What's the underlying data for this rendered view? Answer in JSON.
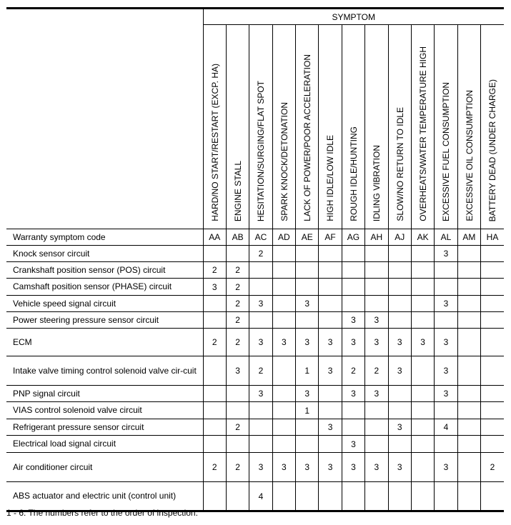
{
  "header": {
    "group_label": "SYMPTOM",
    "symptoms": [
      "HARD/NO START/RESTART (EXCP. HA)",
      "ENGINE STALL",
      "HESITATION/SURGING/FLAT SPOT",
      "SPARK KNOCK/DETONATION",
      "LACK OF POWER/POOR ACCELERATION",
      "HIGH IDLE/LOW IDLE",
      "ROUGH IDLE/HUNTING",
      "IDLING VIBRATION",
      "SLOW/NO RETURN TO IDLE",
      "OVERHEATS/WATER TEMPERATURE HIGH",
      "EXCESSIVE FUEL CONSUMPTION",
      "EXCESSIVE OIL CONSUMPTION",
      "BATTERY DEAD (UNDER CHARGE)"
    ]
  },
  "rows": [
    {
      "name": "Warranty symptom code",
      "values": [
        "AA",
        "AB",
        "AC",
        "AD",
        "AE",
        "AF",
        "AG",
        "AH",
        "AJ",
        "AK",
        "AL",
        "AM",
        "HA"
      ]
    },
    {
      "name": "Knock sensor circuit",
      "values": [
        "",
        "",
        "2",
        "",
        "",
        "",
        "",
        "",
        "",
        "",
        "3",
        "",
        ""
      ]
    },
    {
      "name": "Crankshaft position sensor (POS) circuit",
      "values": [
        "2",
        "2",
        "",
        "",
        "",
        "",
        "",
        "",
        "",
        "",
        "",
        "",
        ""
      ]
    },
    {
      "name": "Camshaft position sensor (PHASE) circuit",
      "values": [
        "3",
        "2",
        "",
        "",
        "",
        "",
        "",
        "",
        "",
        "",
        "",
        "",
        ""
      ]
    },
    {
      "name": "Vehicle speed signal circuit",
      "values": [
        "",
        "2",
        "3",
        "",
        "3",
        "",
        "",
        "",
        "",
        "",
        "3",
        "",
        ""
      ]
    },
    {
      "name": "Power steering pressure sensor circuit",
      "values": [
        "",
        "2",
        "",
        "",
        "",
        "",
        "3",
        "3",
        "",
        "",
        "",
        "",
        ""
      ]
    },
    {
      "name": "ECM",
      "values": [
        "2",
        "2",
        "3",
        "3",
        "3",
        "3",
        "3",
        "3",
        "3",
        "3",
        "3",
        "",
        ""
      ]
    },
    {
      "name": "Intake valve timing control solenoid valve cir-cuit",
      "values": [
        "",
        "3",
        "2",
        "",
        "1",
        "3",
        "2",
        "2",
        "3",
        "",
        "3",
        "",
        ""
      ]
    },
    {
      "name": "PNP signal circuit",
      "values": [
        "",
        "",
        "3",
        "",
        "3",
        "",
        "3",
        "3",
        "",
        "",
        "3",
        "",
        ""
      ]
    },
    {
      "name": "VIAS control solenoid valve circuit",
      "values": [
        "",
        "",
        "",
        "",
        "1",
        "",
        "",
        "",
        "",
        "",
        "",
        "",
        ""
      ]
    },
    {
      "name": "Refrigerant pressure sensor circuit",
      "values": [
        "",
        "2",
        "",
        "",
        "",
        "3",
        "",
        "",
        "3",
        "",
        "4",
        "",
        ""
      ]
    },
    {
      "name": "Electrical load signal circuit",
      "values": [
        "",
        "",
        "",
        "",
        "",
        "",
        "3",
        "",
        "",
        "",
        "",
        "",
        ""
      ]
    },
    {
      "name": "Air conditioner circuit",
      "values": [
        "2",
        "2",
        "3",
        "3",
        "3",
        "3",
        "3",
        "3",
        "3",
        "",
        "3",
        "",
        "2"
      ]
    },
    {
      "name": "ABS actuator and electric unit (control unit)",
      "values": [
        "",
        "",
        "4",
        "",
        "",
        "",
        "",
        "",
        "",
        "",
        "",
        "",
        ""
      ]
    }
  ],
  "footnote": "1 - 6: The numbers refer to the order of inspection."
}
